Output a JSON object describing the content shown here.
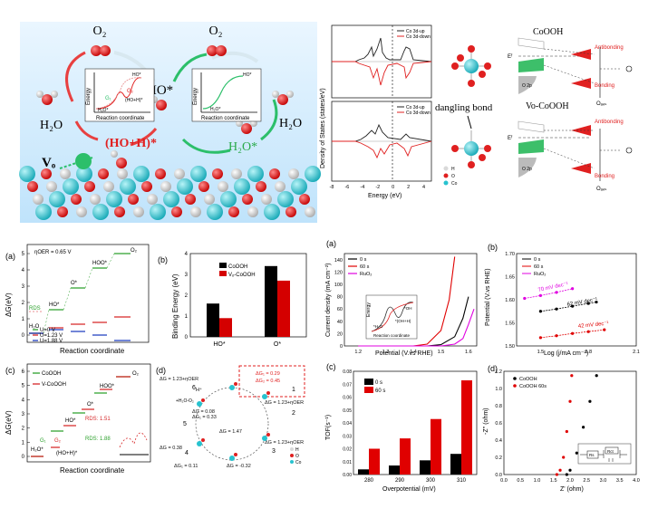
{
  "top_left": {
    "o2_left": "O₂",
    "o2_right": "O₂",
    "h2o_left": "H₂O",
    "h2o_right": "H₂O",
    "ho_star": "HO*",
    "h2o_star": "H₂O*",
    "ho_h_star": "(HO+H)*",
    "vo": "Vₒ",
    "inset_left": {
      "ylabel": "Energy",
      "xlabel": "Reaction coordinate",
      "g1": "G₁",
      "g2": "G₂",
      "top": "HO*",
      "mid": "(HO+H)*",
      "bottom": "H₂O*"
    },
    "inset_right": {
      "ylabel": "Energy",
      "xlabel": "Reaction coordinate",
      "top": "HO*",
      "bottom": "H₂O*"
    }
  },
  "dos": {
    "ylabel": "Density of States (states/eV)",
    "xlabel": "Energy (eV)",
    "xticks": [
      "-8",
      "-6",
      "-4",
      "-2",
      "0",
      "2",
      "4"
    ],
    "legend_up": "Co 3d-up",
    "legend_down": "Co 3d-down"
  },
  "orbital": {
    "title_top": "CoOOH",
    "title_bottom": "Vo-CoOOH",
    "dangling": "dangling bond",
    "antibonding": "Antibonding",
    "bonding": "Bonding",
    "ef": "Eᶠ",
    "o2p": "O 2p",
    "oads": "Oₐₔₛ",
    "legend": [
      "H",
      "O",
      "Co"
    ],
    "colors": {
      "h": "#d9d9d9",
      "o": "#e02020",
      "co": "#27c2cf"
    }
  },
  "panel_a": {
    "label": "(a)",
    "eta": "ηOER = 0.65 V",
    "ylabel": "ΔG(eV)",
    "xlabel": "Reaction coordinate",
    "yticks": [
      "0",
      "1",
      "2",
      "3",
      "4",
      "5"
    ],
    "species": [
      "H₂O",
      "HO*",
      "O*",
      "HOO*",
      "O₂"
    ],
    "rds": "RDS",
    "legend": [
      "U=0 V",
      "U=1.23 V",
      "U=1.88 V"
    ],
    "colors": [
      "#2ca02c",
      "#d62728",
      "#1f3fbf"
    ]
  },
  "panel_b_left": {
    "label": "(b)",
    "ylabel": "Binding Energy (eV)",
    "categories": [
      "HO*",
      "O*"
    ],
    "yticks": [
      "0",
      "1",
      "2",
      "3",
      "4"
    ],
    "legend": [
      "CoOOH",
      "Vₒ-CoOOH"
    ],
    "colors": [
      "#000000",
      "#d40000"
    ]
  },
  "panel_c_left": {
    "label": "(c)",
    "ylabel": "ΔG(eV)",
    "xlabel": "Reaction coordinate",
    "yticks": [
      "0",
      "1",
      "2",
      "3",
      "4",
      "5",
      "6"
    ],
    "legend": [
      "CoOOH",
      "V-CoOOH"
    ],
    "species": [
      "H₂O*",
      "HO*",
      "O*",
      "HOO*",
      "O₂"
    ],
    "rds1": "RDS: 1.51",
    "rds2": "RDS: 1.88",
    "g1": "G₁",
    "g2": "G₂",
    "hoh": "(HO+H)*"
  },
  "panel_d": {
    "label": "(d)",
    "lines": [
      "ΔG = 1.23+ηOER",
      "ΔG₁ = 0.29",
      "ΔG₂ = 0.45",
      "ΔG = 1.23+ηOER",
      "ΔG = 0.08",
      "ΔG₁ = 0.33",
      "ΔG = 1.47",
      "ΔG = 0.38",
      "ΔG₁ = 0.11",
      "ΔG = -0.32",
      "ΔG = 1.23+ηOER"
    ],
    "nodes": [
      "1",
      "2",
      "3",
      "4",
      "5",
      "6"
    ],
    "misc": [
      "H⁺",
      "+H₂O-O₂"
    ],
    "legend": [
      "H",
      "O",
      "Co"
    ]
  },
  "panel_lsv": {
    "label": "(a)",
    "ylabel": "Current density (mA cm⁻²)",
    "xlabel": "Potential (V.vs RHE)",
    "xticks": [
      "1.2",
      "1.3",
      "1.4",
      "1.5",
      "1.6"
    ],
    "yticks": [
      "0",
      "20",
      "40",
      "60",
      "80",
      "100",
      "120",
      "140"
    ],
    "legend": [
      "0 s",
      "60 s",
      "RuO₂"
    ],
    "colors": [
      "#000000",
      "#e00000",
      "#e000e0"
    ],
    "inset": {
      "ylabel": "Energy",
      "xlabel": "Reaction coordinate",
      "l1": "*OH",
      "l2": "*(OH+H)",
      "l3": "*H₂O"
    }
  },
  "panel_tafel": {
    "label": "(b)",
    "ylabel": "Potential (V.vs RHE)",
    "xlabel": "Log (j/mA cm⁻²)",
    "xticks": [
      "1.5",
      "1.8",
      "2.1"
    ],
    "yticks": [
      "1.50",
      "1.55",
      "1.60",
      "1.65",
      "1.70"
    ],
    "legend": [
      "0 s",
      "60 s",
      "RuO₂"
    ],
    "slopes": [
      "70 mV dec⁻¹",
      "62 mV dec⁻¹",
      "42 mV dec⁻¹"
    ]
  },
  "panel_tof": {
    "label": "(c)",
    "ylabel": "TOF(s⁻¹)",
    "xlabel": "Overpotential (mV)",
    "categories": [
      "280",
      "290",
      "300",
      "310"
    ],
    "yticks": [
      "0.00",
      "0.01",
      "0.02",
      "0.03",
      "0.04",
      "0.05",
      "0.06",
      "0.07",
      "0.08"
    ],
    "legend": [
      "0 s",
      "60 s"
    ]
  },
  "panel_eis": {
    "label": "(d)",
    "ylabel": "-Z'' (ohm)",
    "xlabel": "Z' (ohm)",
    "xticks": [
      "0.0",
      "0.5",
      "1.0",
      "1.5",
      "2.0",
      "2.5",
      "3.0",
      "3.5",
      "4.0"
    ],
    "yticks": [
      "0.0",
      "0.2",
      "0.4",
      "0.6",
      "0.8",
      "1.0",
      "1.2"
    ],
    "legend": [
      "CoOOH",
      "CoOOH 60s"
    ],
    "circuit": [
      "Rs",
      "Rct"
    ]
  },
  "chart_data": [
    {
      "type": "bar",
      "categories": [
        "HO*",
        "O*"
      ],
      "series": [
        {
          "name": "CoOOH",
          "values": [
            1.6,
            3.4
          ]
        },
        {
          "name": "Vo-CoOOH",
          "values": [
            0.9,
            2.7
          ]
        }
      ],
      "ylabel": "Binding Energy (eV)",
      "ylim": [
        0,
        4
      ]
    },
    {
      "type": "bar",
      "categories": [
        "280",
        "290",
        "300",
        "310"
      ],
      "series": [
        {
          "name": "0 s",
          "values": [
            0.004,
            0.007,
            0.011,
            0.016
          ]
        },
        {
          "name": "60 s",
          "values": [
            0.02,
            0.028,
            0.043,
            0.073
          ]
        }
      ],
      "xlabel": "Overpotential (mV)",
      "ylabel": "TOF(s-1)",
      "ylim": [
        0,
        0.08
      ]
    },
    {
      "type": "line",
      "series": [
        {
          "name": "0 s",
          "x": [
            1.2,
            1.45,
            1.5,
            1.55,
            1.58,
            1.6
          ],
          "y": [
            0,
            0,
            2,
            15,
            45,
            80
          ]
        },
        {
          "name": "60 s",
          "x": [
            1.2,
            1.4,
            1.45,
            1.5,
            1.53,
            1.55
          ],
          "y": [
            0,
            0,
            3,
            25,
            75,
            145
          ]
        },
        {
          "name": "RuO2",
          "x": [
            1.2,
            1.5,
            1.55,
            1.58,
            1.6,
            1.62
          ],
          "y": [
            0,
            0,
            3,
            12,
            35,
            60
          ]
        }
      ],
      "xlabel": "Potential (V.vs RHE)",
      "ylabel": "Current density (mA cm-2)",
      "xlim": [
        1.15,
        1.63
      ],
      "ylim": [
        0,
        150
      ]
    },
    {
      "type": "scatter",
      "series": [
        {
          "name": "0 s",
          "x": [
            1.5,
            1.6,
            1.7,
            1.8,
            1.85
          ],
          "y": [
            1.575,
            1.58,
            1.586,
            1.592,
            1.595
          ]
        },
        {
          "name": "60 s",
          "x": [
            1.5,
            1.6,
            1.7,
            1.8,
            1.9
          ],
          "y": [
            1.518,
            1.522,
            1.527,
            1.531,
            1.535
          ]
        },
        {
          "name": "RuO2",
          "x": [
            1.4,
            1.5,
            1.6,
            1.7
          ],
          "y": [
            1.603,
            1.609,
            1.616,
            1.624
          ]
        }
      ],
      "xlabel": "Log (j/mA cm-2)",
      "ylabel": "Potential (V.vs RHE)",
      "xlim": [
        1.35,
        2.1
      ],
      "ylim": [
        1.5,
        1.7
      ]
    },
    {
      "type": "scatter",
      "series": [
        {
          "name": "CoOOH",
          "x": [
            1.9,
            2.0,
            2.2,
            2.4,
            2.6,
            2.8
          ],
          "y": [
            0.0,
            0.05,
            0.25,
            0.55,
            0.85,
            1.15
          ]
        },
        {
          "name": "CoOOH 60s",
          "x": [
            1.6,
            1.7,
            1.8,
            1.9,
            2.0,
            2.05
          ],
          "y": [
            0.0,
            0.05,
            0.2,
            0.5,
            0.85,
            1.15
          ]
        }
      ],
      "xlabel": "Z' (ohm)",
      "ylabel": "-Z'' (ohm)",
      "xlim": [
        0,
        4
      ],
      "ylim": [
        0,
        1.2
      ]
    }
  ]
}
